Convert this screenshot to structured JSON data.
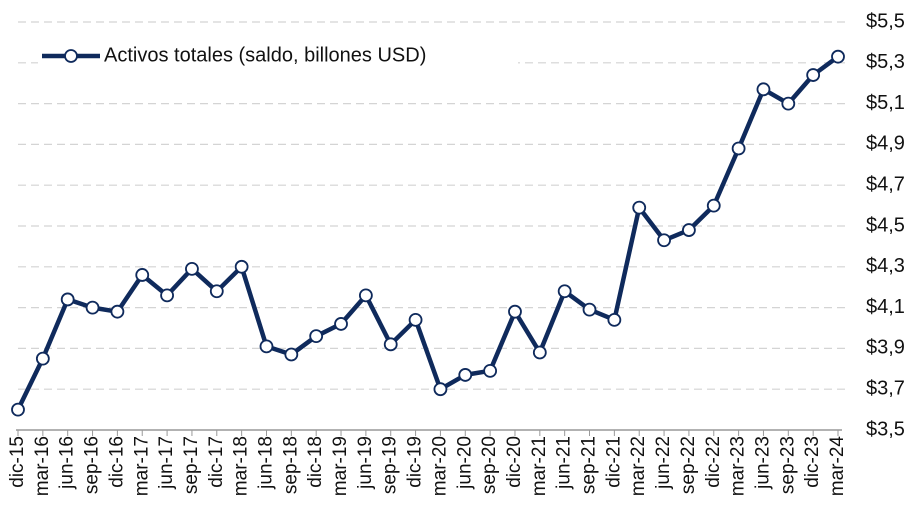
{
  "chart_data": {
    "type": "line",
    "categories": [
      "dic-15",
      "mar-16",
      "jun-16",
      "sep-16",
      "dic-16",
      "mar-17",
      "jun-17",
      "sep-17",
      "dic-17",
      "mar-18",
      "jun-18",
      "sep-18",
      "dic-18",
      "mar-19",
      "jun-19",
      "sep-19",
      "dic-19",
      "mar-20",
      "jun-20",
      "sep-20",
      "dic-20",
      "mar-21",
      "jun-21",
      "sep-21",
      "dic-21",
      "mar-22",
      "jun-22",
      "sep-22",
      "dic-22",
      "mar-23",
      "jun-23",
      "sep-23",
      "dic-23",
      "mar-24"
    ],
    "series": [
      {
        "name": "Activos totales (saldo, billones USD)",
        "color": "#0f2a5c",
        "values": [
          3.6,
          3.85,
          4.14,
          4.1,
          4.08,
          4.26,
          4.16,
          4.29,
          4.18,
          4.3,
          3.91,
          3.87,
          3.96,
          4.02,
          4.16,
          3.92,
          4.04,
          3.7,
          3.77,
          3.79,
          4.08,
          3.88,
          4.18,
          4.09,
          4.04,
          4.59,
          4.43,
          4.48,
          4.6,
          4.88,
          5.17,
          5.1,
          5.24,
          5.33
        ]
      }
    ],
    "ylim": [
      3.5,
      5.5
    ],
    "yticks": [
      {
        "value": 3.5,
        "label": "$3,5"
      },
      {
        "value": 3.7,
        "label": "$3,7"
      },
      {
        "value": 3.9,
        "label": "$3,9"
      },
      {
        "value": 4.1,
        "label": "$4,1"
      },
      {
        "value": 4.3,
        "label": "$4,3"
      },
      {
        "value": 4.5,
        "label": "$4,5"
      },
      {
        "value": 4.7,
        "label": "$4,7"
      },
      {
        "value": 4.9,
        "label": "$4,9"
      },
      {
        "value": 5.1,
        "label": "$5,1"
      },
      {
        "value": 5.3,
        "label": "$5,3"
      },
      {
        "value": 5.5,
        "label": "$5,5"
      }
    ],
    "grid": true,
    "legend": "top-left"
  }
}
